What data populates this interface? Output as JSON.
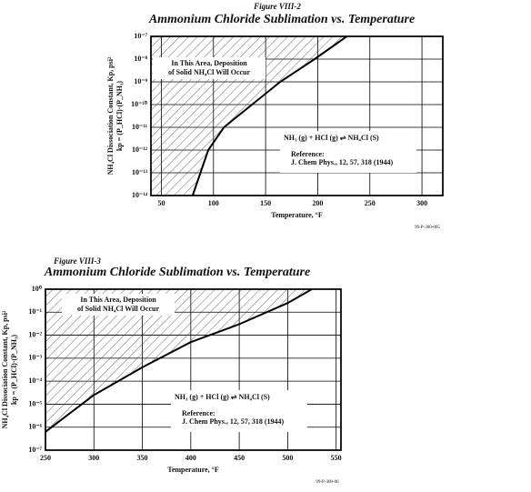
{
  "chart_data": [
    {
      "type": "line",
      "figure_label": "Figure VIII-2",
      "title": "Ammonium Chloride Sublimation vs. Temperature",
      "y_label": "NH₄Cl Dissociation Constant, Kp, psi²",
      "y_label2": "kp = (P_HCl)·(P_NH₃)",
      "x_label": "Temperature, °F",
      "note": [
        "In This Area, Deposition",
        "of Solid NH₄Cl Will Occur"
      ],
      "reaction": "NH₃ (g) + HCl (g) ⇌ NH₄Cl (S)",
      "reference": [
        "Reference:",
        "J. Chem Phys., 12, 57, 318 (1944)"
      ],
      "code": "99-P-300-005",
      "x": [
        80,
        95,
        110,
        137,
        164,
        197,
        228
      ],
      "values": [
        1e-14,
        1e-12,
        1e-11,
        1e-10,
        1e-09,
        1e-08,
        1e-07
      ],
      "color": "#000000",
      "xlim": [
        40,
        320
      ],
      "xticks": [
        50,
        100,
        150,
        200,
        250,
        300
      ],
      "log_y": true,
      "grid": true,
      "ylim": [
        1e-14,
        1e-07
      ],
      "yticks": [
        {
          "value": 1e-07,
          "label": "10⁻⁷"
        },
        {
          "value": 1e-08,
          "label": "10⁻⁸"
        },
        {
          "value": 1e-09,
          "label": "10⁻⁹"
        },
        {
          "value": 1e-10,
          "label": "10⁻¹⁰"
        },
        {
          "value": 1e-11,
          "label": "10⁻¹¹"
        },
        {
          "value": 1e-12,
          "label": "10⁻¹²"
        },
        {
          "value": 1e-13,
          "label": "10⁻¹³"
        },
        {
          "value": 1e-14,
          "label": "10⁻¹⁴"
        }
      ]
    },
    {
      "type": "line",
      "figure_label": "Figure VIII-3",
      "title": "Ammonium Chloride Sublimation vs. Temperature",
      "y_label": "NH₄Cl Dissociation Constant, Kp, psi²",
      "y_label2": "kp = (P_HCl)·(P_NH₃)",
      "x_label": "Temperature, °F",
      "note": [
        "In This Area, Deposition",
        "of Solid NH₄Cl Will Occur"
      ],
      "reaction": "NH₃ (g) + HCl (g) ⇌ NH₄Cl (S)",
      "reference": [
        "Reference:",
        "J. Chem Phys., 12, 57, 318 (1944)"
      ],
      "code": "99-P-300-06",
      "x": [
        250,
        300,
        350,
        400,
        450,
        500,
        525
      ],
      "values": [
        6.3e-07,
        2.5e-05,
        0.0004,
        0.005,
        0.03,
        0.25,
        1
      ],
      "color": "#000000",
      "xlim": [
        250,
        555
      ],
      "xticks": [
        250,
        300,
        350,
        400,
        450,
        500,
        550
      ],
      "log_y": true,
      "grid": true,
      "ylim": [
        1e-07,
        1
      ],
      "yticks": [
        {
          "value": 1,
          "label": "10⁰"
        },
        {
          "value": 0.1,
          "label": "10⁻¹"
        },
        {
          "value": 0.01,
          "label": "10⁻²"
        },
        {
          "value": 0.001,
          "label": "10⁻³"
        },
        {
          "value": 0.0001,
          "label": "10⁻⁴"
        },
        {
          "value": 1e-05,
          "label": "10⁻⁵"
        },
        {
          "value": 1e-06,
          "label": "10⁻⁶"
        },
        {
          "value": 1e-07,
          "label": "10⁻⁷"
        }
      ]
    }
  ]
}
